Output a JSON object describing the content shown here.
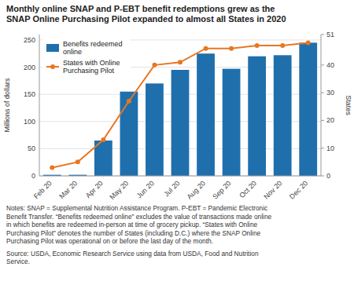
{
  "chart_data": {
    "type": "bar",
    "title": "Monthly online SNAP and P-EBT benefit redemptions grew as the\nSNAP Online Purchasing Pilot expanded to almost all States in 2020",
    "categories": [
      "Feb 20",
      "Mar 20",
      "Apr 20",
      "May 20",
      "Jun 20",
      "Jul 20",
      "Aug 20",
      "Sep 20",
      "Oct 20",
      "Nov 20",
      "Dec 20"
    ],
    "series": [
      {
        "name": "Benefits redeemed\nonline",
        "type": "bar",
        "color": "#1f6fad",
        "values": [
          2,
          2,
          65,
          155,
          170,
          195,
          225,
          197,
          220,
          222,
          245
        ]
      },
      {
        "name": "States with Online\nPurchasing Pilot",
        "type": "line",
        "color": "#e87722",
        "marker": "circle",
        "axis": "y2",
        "values": [
          3,
          5,
          13,
          27,
          40,
          41,
          46,
          46,
          47,
          47,
          48
        ]
      }
    ],
    "ylabel": "Millions of dollars",
    "y2label": "States",
    "ylim": [
      0,
      260
    ],
    "yticks": [
      0,
      50,
      100,
      150,
      200,
      250
    ],
    "y2lim": [
      0,
      51
    ],
    "y2ticks": [
      0,
      10,
      20,
      30,
      40,
      51
    ],
    "grid": true,
    "legend": "upper left",
    "annotations": [
      "Notes: SNAP = Supplemental Nutrition Assistance Program. P-EBT = Pandemic Electronic\nBenefit Transfer. “Benefits redeemed online” excludes the value of transactions made online\nin which benefits are redeemed in-person at time of grocery pickup. “States with Online\nPurchasing Pilot” denotes the number of States (including D.C.) where the SNAP Online\nPurchasing Pilot was operational on or before the last day of the month.",
      "Source: USDA, Economic Research Service using data from USDA, Food and Nutrition\nService."
    ]
  }
}
